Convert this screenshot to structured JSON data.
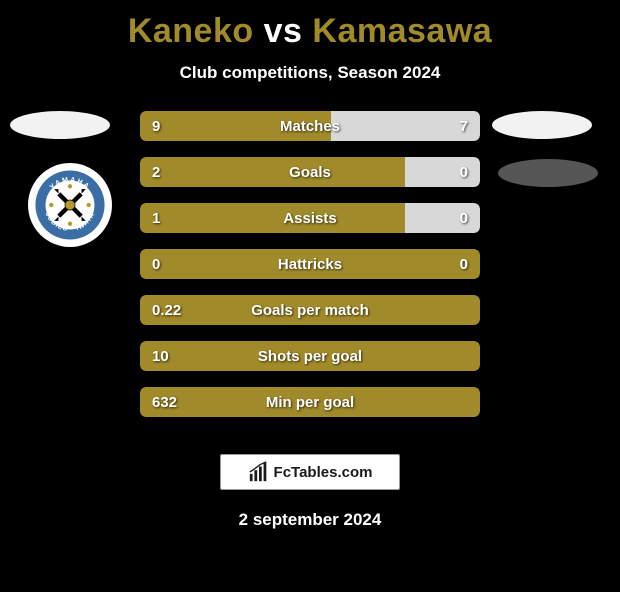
{
  "title": {
    "player1": "Kaneko",
    "vs": "vs",
    "player2": "Kamasawa",
    "player1_color": "#a08a2a",
    "vs_color": "#ffffff",
    "player2_color": "#a08a2a"
  },
  "subtitle": "Club competitions, Season 2024",
  "colors": {
    "background": "#000000",
    "bar_left": "#a08a2a",
    "bar_right": "#d8d8d8",
    "bar_full": "#a08a2a",
    "text": "#ffffff"
  },
  "stats": [
    {
      "label": "Matches",
      "left_val": "9",
      "right_val": "7",
      "left_pct": 56.25,
      "right_pct": 43.75,
      "right_color": "#d8d8d8"
    },
    {
      "label": "Goals",
      "left_val": "2",
      "right_val": "0",
      "left_pct": 78,
      "right_pct": 22,
      "right_color": "#d8d8d8"
    },
    {
      "label": "Assists",
      "left_val": "1",
      "right_val": "0",
      "left_pct": 78,
      "right_pct": 22,
      "right_color": "#d8d8d8"
    },
    {
      "label": "Hattricks",
      "left_val": "0",
      "right_val": "0",
      "left_pct": 100,
      "right_pct": 0,
      "right_color": "#a08a2a"
    },
    {
      "label": "Goals per match",
      "left_val": "0.22",
      "right_val": "",
      "left_pct": 100,
      "right_pct": 0,
      "right_color": "#a08a2a"
    },
    {
      "label": "Shots per goal",
      "left_val": "10",
      "right_val": "",
      "left_pct": 100,
      "right_pct": 0,
      "right_color": "#a08a2a"
    },
    {
      "label": "Min per goal",
      "left_val": "632",
      "right_val": "",
      "left_pct": 100,
      "right_pct": 0,
      "right_color": "#a08a2a"
    }
  ],
  "footer_brand": "FcTables.com",
  "date": "2 september 2024",
  "badge": {
    "ring_color": "#3a6ea5",
    "ring_text_color": "#ffffff",
    "center_bg": "#ffffff",
    "cross_color": "#000000",
    "ball_color": "#b89a2a"
  }
}
